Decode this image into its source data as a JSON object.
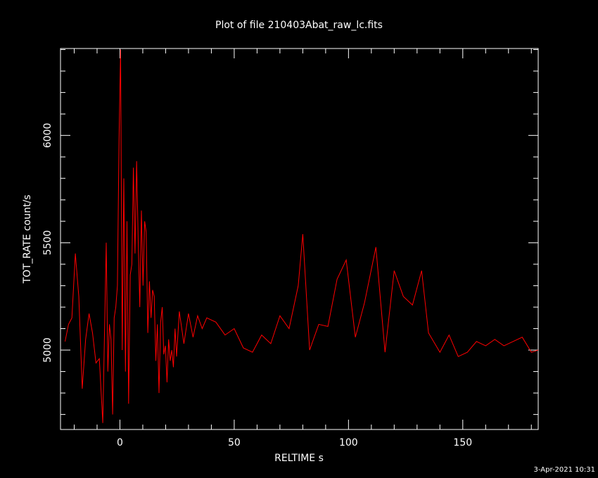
{
  "chart_data": {
    "type": "line",
    "title": "Plot of file 210403Abat_raw_lc.fits",
    "xlabel": "RELTIME  s",
    "ylabel": "TOT_RATE  count/s",
    "xlim": [
      -26,
      183
    ],
    "ylim": [
      4630,
      6405
    ],
    "xticks": [
      0,
      50,
      100,
      150
    ],
    "yticks": [
      5000,
      5500,
      6000
    ],
    "x_minor_step": 10,
    "y_minor_step": 100,
    "grid": false,
    "line_color": "#ff0000",
    "background": "#000000",
    "series": [
      {
        "x": [
          -24,
          -22.5,
          -21,
          -19.5,
          -18,
          -16.5,
          -15,
          -13.5,
          -12,
          -10.5,
          -9,
          -7.5,
          -6,
          -5.3,
          -4.6,
          -3.9,
          -3.2,
          -2.5,
          -1.8,
          -1.1,
          -0.4,
          0.3,
          1.0,
          1.7,
          2.4,
          3.1,
          3.8,
          4.5,
          5.2,
          5.9,
          6.6,
          7.3,
          8.0,
          8.7,
          9.4,
          10.1,
          10.8,
          11.5,
          12.2,
          12.9,
          13.6,
          14.3,
          15.0,
          15.7,
          16.4,
          17.1,
          17.8,
          18.5,
          19.2,
          19.9,
          20.6,
          21.3,
          22.0,
          22.7,
          23.4,
          24.1,
          24.8,
          26,
          28,
          30,
          32,
          34,
          36,
          38,
          42,
          46,
          50,
          54,
          58,
          62,
          66,
          70,
          74,
          78,
          80,
          83,
          87,
          91,
          95,
          99,
          103,
          107,
          112,
          116,
          120,
          124,
          128,
          132,
          135,
          140,
          144,
          148,
          152,
          156,
          160,
          164,
          168,
          172,
          176,
          180,
          183
        ],
        "y": [
          5040,
          5120,
          5150,
          5450,
          5250,
          4820,
          5050,
          5170,
          5080,
          4940,
          4960,
          4660,
          5500,
          4900,
          5120,
          5050,
          4700,
          5150,
          5200,
          5300,
          5980,
          6400,
          5000,
          5800,
          4900,
          5600,
          4750,
          5350,
          5400,
          5850,
          5450,
          5880,
          5500,
          5200,
          5650,
          5300,
          5600,
          5550,
          5080,
          5320,
          5150,
          5280,
          5250,
          4950,
          5120,
          4800,
          5130,
          5200,
          4980,
          5020,
          4850,
          5050,
          4950,
          5000,
          4920,
          5100,
          4970,
          5180,
          5030,
          5170,
          5060,
          5160,
          5100,
          5150,
          5130,
          5070,
          5100,
          5010,
          4990,
          5070,
          5030,
          5160,
          5100,
          5300,
          5540,
          5000,
          5120,
          5110,
          5330,
          5420,
          5060,
          5220,
          5480,
          4990,
          5370,
          5250,
          5210,
          5370,
          5080,
          4990,
          5070,
          4970,
          4990,
          5040,
          5020,
          5050,
          5020,
          5040,
          5060,
          4990,
          5000
        ]
      }
    ]
  },
  "timestamp": "3-Apr-2021 10:31"
}
